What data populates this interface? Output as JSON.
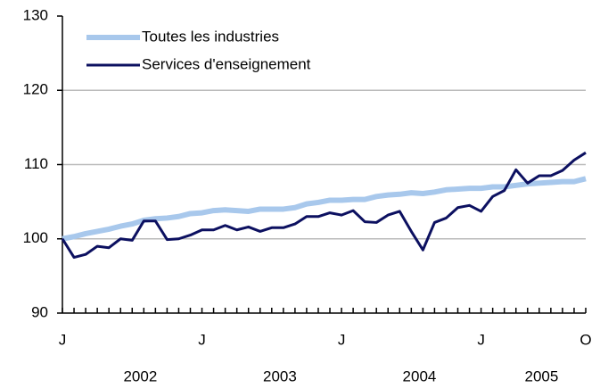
{
  "chart_data": {
    "type": "line",
    "categories": [
      "J",
      null,
      null,
      null,
      null,
      null,
      null,
      null,
      null,
      null,
      null,
      null,
      "J",
      null,
      null,
      null,
      null,
      null,
      null,
      null,
      null,
      null,
      null,
      null,
      "J",
      null,
      null,
      null,
      null,
      null,
      null,
      null,
      null,
      null,
      null,
      null,
      "J",
      null,
      null,
      null,
      null,
      null,
      null,
      null,
      null,
      "O"
    ],
    "year_labels": [
      "2002",
      "2003",
      "2004",
      "2005"
    ],
    "series": [
      {
        "name": "Toutes les industries",
        "color": "#a8c8ec",
        "values": [
          100,
          100.3,
          100.7,
          101,
          101.3,
          101.7,
          102,
          102.5,
          102.7,
          102.8,
          103,
          103.4,
          103.5,
          103.8,
          103.9,
          103.8,
          103.7,
          104,
          104,
          104,
          104.2,
          104.7,
          104.9,
          105.2,
          105.2,
          105.3,
          105.3,
          105.7,
          105.9,
          106,
          106.2,
          106.1,
          106.3,
          106.6,
          106.7,
          106.8,
          106.8,
          107,
          107,
          107.2,
          107.4,
          107.5,
          107.6,
          107.7,
          107.7,
          108.1
        ]
      },
      {
        "name": "Services d'enseignement",
        "color": "#0c1060",
        "values": [
          100,
          97.5,
          97.9,
          99,
          98.8,
          100,
          99.8,
          102.4,
          102.4,
          99.9,
          100,
          100.5,
          101.2,
          101.2,
          101.8,
          101.2,
          101.6,
          101,
          101.5,
          101.5,
          102,
          103,
          103,
          103.5,
          103.2,
          103.8,
          102.3,
          102.2,
          103.2,
          103.7,
          101,
          98.5,
          102.2,
          102.8,
          104.2,
          104.5,
          103.7,
          105.7,
          106.5,
          109.3,
          107.5,
          108.5,
          108.5,
          109.2,
          110.6,
          111.6
        ]
      }
    ],
    "ylim": [
      90,
      130
    ],
    "yticks": [
      90,
      100,
      110,
      120,
      130
    ],
    "grid": true,
    "legend": "top-left"
  }
}
